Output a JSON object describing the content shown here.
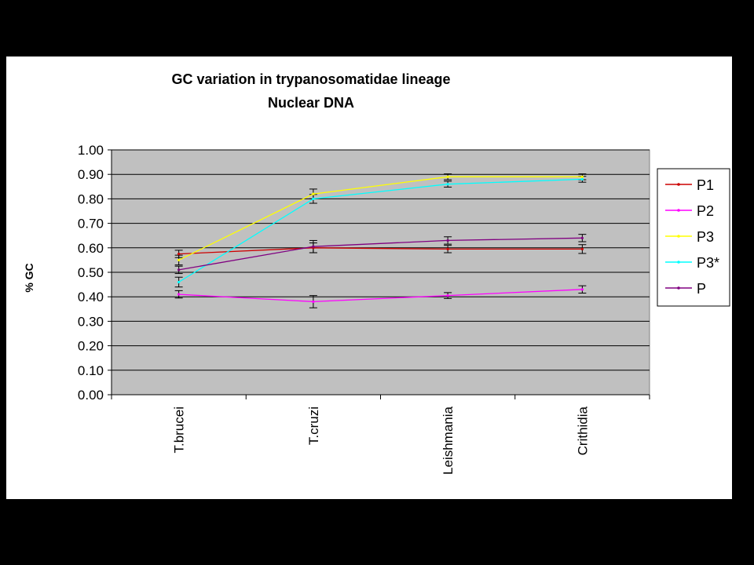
{
  "chart_data": {
    "type": "line",
    "title": "GC variation in trypanosomatidae lineage",
    "subtitle": "Nuclear DNA",
    "ylabel": "% GC",
    "xlabel": "",
    "categories": [
      "T.brucei",
      "T.cruzi",
      "Leishmania",
      "Crithidia"
    ],
    "ylim": [
      0,
      1
    ],
    "yticks": [
      "0.00",
      "0.10",
      "0.20",
      "0.30",
      "0.40",
      "0.50",
      "0.60",
      "0.70",
      "0.80",
      "0.90",
      "1.00"
    ],
    "grid": true,
    "legend_position": "right",
    "plot_background": "#c0c0c0",
    "series": [
      {
        "name": "P1",
        "color": "#cc0000",
        "values": [
          0.575,
          0.6,
          0.595,
          0.595
        ],
        "errors": [
          0.015,
          0.02,
          0.015,
          0.018
        ]
      },
      {
        "name": "P2",
        "color": "#ff00ff",
        "values": [
          0.41,
          0.38,
          0.405,
          0.43
        ],
        "errors": [
          0.015,
          0.025,
          0.012,
          0.015
        ]
      },
      {
        "name": "P3",
        "color": "#ffff00",
        "values": [
          0.55,
          0.82,
          0.89,
          0.89
        ],
        "errors": [
          0.02,
          0.02,
          0.012,
          0.012
        ]
      },
      {
        "name": "P3*",
        "color": "#00ffff",
        "values": [
          0.46,
          0.8,
          0.86,
          0.88
        ],
        "errors": [
          0.02,
          0.018,
          0.012,
          0.012
        ]
      },
      {
        "name": "P",
        "color": "#800080",
        "values": [
          0.51,
          0.605,
          0.63,
          0.64
        ],
        "errors": [
          0.015,
          0.025,
          0.015,
          0.015
        ]
      }
    ]
  }
}
